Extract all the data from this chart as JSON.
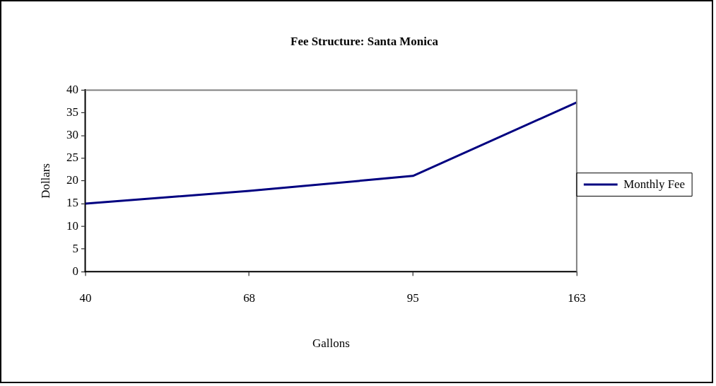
{
  "chart_data": {
    "type": "line",
    "title": "Fee Structure: Santa Monica",
    "xlabel": "Gallons",
    "ylabel": "Dollars",
    "categories": [
      "40",
      "68",
      "95",
      "163"
    ],
    "series": [
      {
        "name": "Monthly Fee",
        "color": "#000080",
        "values": [
          15,
          17.8,
          21.1,
          37.3
        ]
      }
    ],
    "ylim": [
      0,
      40
    ],
    "yticks": [
      0,
      5,
      10,
      15,
      20,
      25,
      30,
      35,
      40
    ],
    "grid": false,
    "legend": "right",
    "marker": "none",
    "line_style": "solid"
  }
}
